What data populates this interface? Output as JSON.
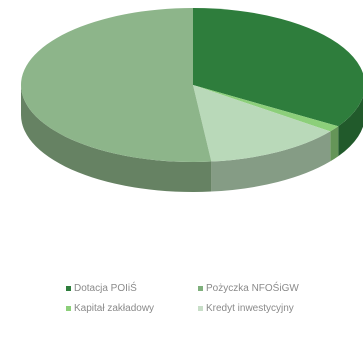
{
  "chart_data": {
    "type": "pie",
    "style": "3d",
    "title": "",
    "slices": [
      {
        "label": "Dotacja POIiŚ",
        "value": 34,
        "color": "#2e7d3c"
      },
      {
        "label": "Pożyczka NFOŚiGW",
        "value": 0,
        "color": "#5e9e5e"
      },
      {
        "label": "Kapitał zakładowy",
        "value": 1.3,
        "color": "#8ccf7a"
      },
      {
        "label": "Kredyt inwestycyjny",
        "value": 13,
        "color": "#b9d9b9"
      },
      {
        "label": "Pożyczka NFOŚiGW",
        "value": 51.7,
        "color": "#8db58a"
      }
    ],
    "legend": {
      "placement": "bottom",
      "items": [
        {
          "label": "Dotacja POIiŚ",
          "color": "#2e7d3c"
        },
        {
          "label": "Pożyczka NFOŚiGW",
          "color": "#7fb07c"
        },
        {
          "label": "Kapitał zakładowy",
          "color": "#8ccf7a"
        },
        {
          "label": "Kredyt inwestycyjny",
          "color": "#c8dec8"
        }
      ]
    }
  }
}
